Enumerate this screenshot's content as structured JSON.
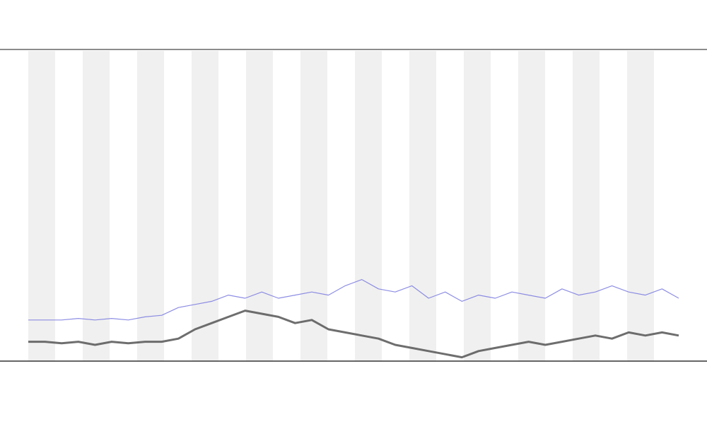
{
  "chart_data": {
    "type": "line",
    "ylim": [
      0,
      100
    ],
    "series": [
      {
        "color": "#555555",
        "values": [
          6,
          6,
          5.5,
          6,
          5,
          6,
          5.5,
          6,
          6,
          7,
          10,
          12,
          14,
          16,
          15,
          14,
          12,
          13,
          10,
          9,
          8,
          7,
          5,
          4,
          3,
          2,
          1,
          3,
          4,
          5,
          6,
          5,
          6,
          7,
          8,
          7,
          9,
          8,
          9,
          8
        ]
      },
      {
        "color": "#7a7ae0",
        "values": [
          13,
          13,
          13,
          13.5,
          13,
          13.5,
          13,
          14,
          14.5,
          17,
          18,
          19,
          21,
          20,
          22,
          20,
          21,
          22,
          21,
          24,
          26,
          23,
          22,
          24,
          20,
          22,
          19,
          21,
          20,
          22,
          21,
          20,
          23,
          21,
          22,
          24,
          22,
          21,
          23,
          20
        ]
      }
    ]
  }
}
